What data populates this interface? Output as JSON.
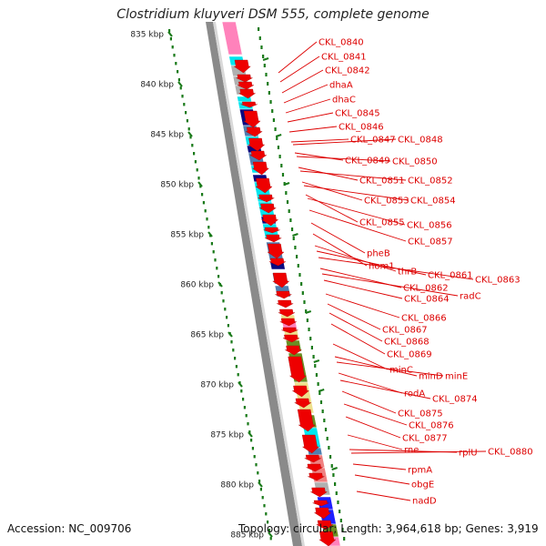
{
  "title": "Clostridium kluyveri DSM 555, complete genome",
  "accession_text": "Accession: NC_009706",
  "topology_text": "Topology: circular; Length: 3,964,618 bp; Genes: 3,919",
  "ticks": [
    {
      "label": "835 kbp"
    },
    {
      "label": "840 kbp"
    },
    {
      "label": "845 kbp"
    },
    {
      "label": "850 kbp"
    },
    {
      "label": "855 kbp"
    },
    {
      "label": "860 kbp"
    },
    {
      "label": "865 kbp"
    },
    {
      "label": "870 kbp"
    },
    {
      "label": "875 kbp"
    },
    {
      "label": "880 kbp"
    },
    {
      "label": "885 kbp"
    }
  ],
  "gene_labels": [
    "CKL_0840",
    "CKL_0841",
    "CKL_0842",
    "dhaA",
    "dhaC",
    "CKL_0845",
    "CKL_0846",
    "CKL_0847",
    "CKL_0848",
    "CKL_0849",
    "CKL_0850",
    "CKL_0851",
    "CKL_0852",
    "CKL_0853",
    "CKL_0854",
    "CKL_0855",
    "CKL_0856",
    "CKL_0857",
    "pheB",
    "hom1",
    "thrB",
    "CKL_0861",
    "CKL_0863",
    "CKL_0862",
    "radC",
    "CKL_0864",
    "CKL_0866",
    "CKL_0867",
    "CKL_0868",
    "CKL_0869",
    "minC",
    "minD",
    "minE",
    "rodA",
    "CKL_0874",
    "CKL_0875",
    "CKL_0876",
    "CKL_0877",
    "rne",
    "rplU",
    "CKL_0880",
    "rpmA",
    "obgE",
    "nadD"
  ],
  "colors": {
    "label": "#dd0000",
    "gene_arrow": "#ee0000",
    "backbone": "#8a8a8a",
    "tick": "#1a7a1a",
    "cyan": "#00e5ee",
    "navy": "#0a0a80",
    "steelblue": "#4f7eb0",
    "olive": "#6b8e23",
    "khaki": "#eee08c",
    "pink": "#ff82bb",
    "salmon": "#f08080",
    "gray": "#b0b0b0",
    "blue": "#1f1fff"
  }
}
